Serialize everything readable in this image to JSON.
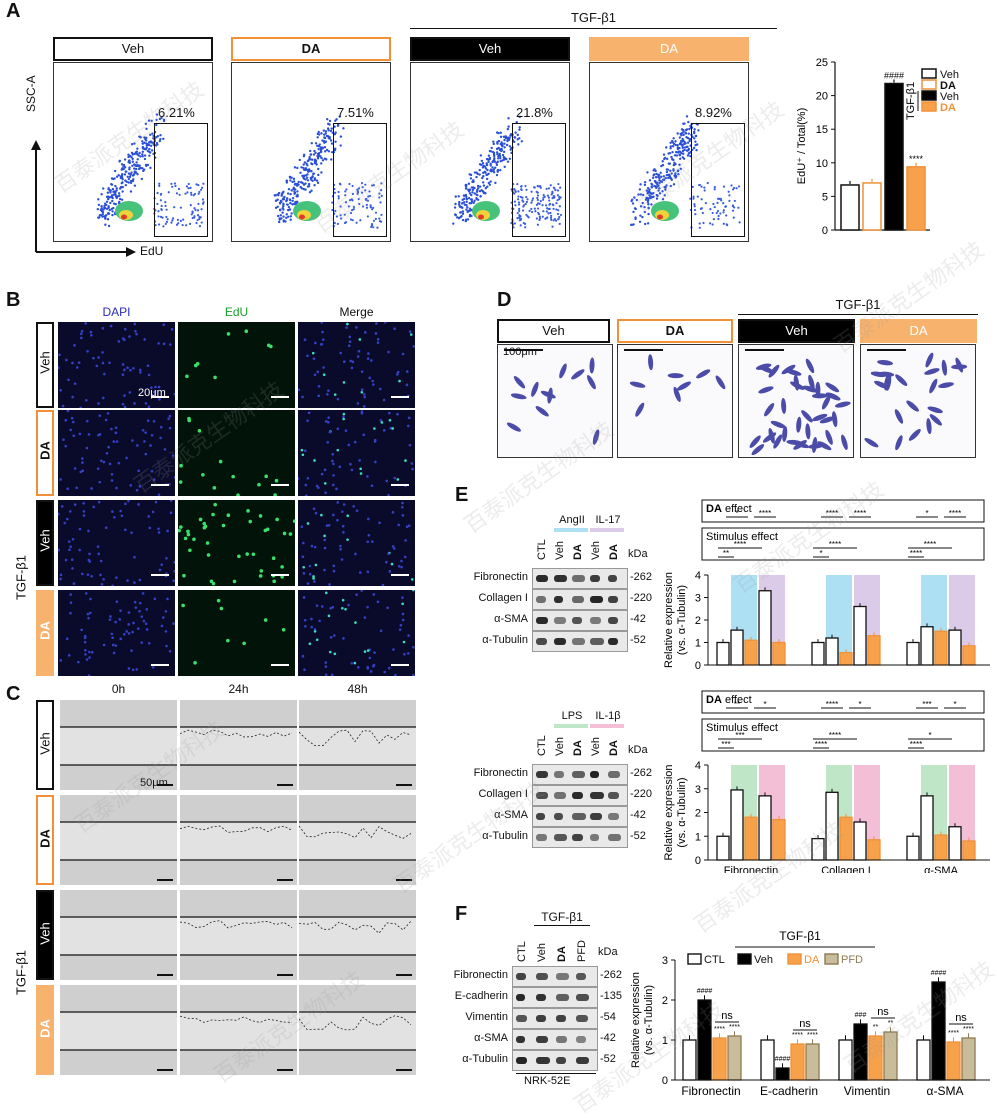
{
  "panelA": {
    "label": "A",
    "tgf_label": "TGF-β1",
    "groups": [
      "Veh",
      "DA",
      "Veh",
      "DA"
    ],
    "percentages": [
      "6.21%",
      "7.51%",
      "21.8%",
      "8.92%"
    ],
    "x_axis": "EdU",
    "y_axis": "SSC-A"
  },
  "chartA": {
    "type": "bar",
    "ylabel": "EdU⁺ / Total(%)",
    "ylim": [
      0,
      25
    ],
    "yticks": [
      "0",
      "5",
      "10",
      "15",
      "20",
      "25"
    ],
    "legend": [
      "Veh",
      "DA",
      "Veh",
      "DA"
    ],
    "legend_group": "TGF-β1",
    "values": [
      6.7,
      7.0,
      21.8,
      9.4
    ],
    "colors": [
      "#ffffff",
      "#ffffff",
      "#000000",
      "#f7a24b"
    ],
    "edges": [
      "#111111",
      "#f0913a",
      "#111111",
      "#f0913a"
    ],
    "annotations": [
      "",
      "",
      "####",
      "****"
    ]
  },
  "panelB": {
    "label": "B",
    "columns": [
      "DAPI",
      "EdU",
      "Merge"
    ],
    "rows": [
      "Veh",
      "DA",
      "Veh",
      "DA"
    ],
    "tgf_label": "TGF-β1",
    "scale": "20μm"
  },
  "panelC": {
    "label": "C",
    "columns": [
      "0h",
      "24h",
      "48h"
    ],
    "rows": [
      "Veh",
      "DA",
      "Veh",
      "DA"
    ],
    "tgf_label": "TGF-β1",
    "scale": "50μm"
  },
  "panelD": {
    "label": "D",
    "tgf_label": "TGF-β1",
    "groups": [
      "Veh",
      "DA",
      "Veh",
      "DA"
    ],
    "scale": "100μm"
  },
  "panelE": {
    "label": "E",
    "blot1": {
      "stimuli": [
        "AngII",
        "IL-17"
      ],
      "lanes": [
        "CTL",
        "Veh",
        "DA",
        "Veh",
        "DA"
      ],
      "kda": "kDa",
      "proteins": [
        "Fibronectin",
        "Collagen I",
        "α-SMA",
        "α-Tubulin"
      ],
      "sizes": [
        "262",
        "220",
        "42",
        "52"
      ]
    },
    "blot2": {
      "stimuli": [
        "LPS",
        "IL-1β"
      ],
      "lanes": [
        "CTL",
        "Veh",
        "DA",
        "Veh",
        "DA"
      ],
      "kda": "kDa",
      "proteins": [
        "Fibronectin",
        "Collagen I",
        "α-SMA",
        "α-Tubulin"
      ],
      "sizes": [
        "262",
        "220",
        "42",
        "52"
      ]
    },
    "da_effect": "DA effect",
    "stimulus_effect": "Stimulus effect",
    "da_effect_bold": "DA",
    "da_effect_rest": " effect"
  },
  "chartE1": {
    "type": "bar",
    "ylabel": "Relative expression",
    "ylabel2": "(vs. α-Tubulin)",
    "ylim": [
      0,
      4
    ],
    "yticks": [
      "0",
      "1",
      "2",
      "3",
      "4"
    ],
    "categories": [
      "Fibronectin",
      "Collagen I",
      "α-SMA"
    ],
    "values": [
      [
        1.0,
        1.55,
        1.1,
        3.3,
        1.0
      ],
      [
        1.0,
        1.2,
        0.55,
        2.6,
        1.3
      ],
      [
        1.0,
        1.7,
        1.5,
        1.55,
        0.85
      ]
    ],
    "da_sig": [
      [
        "*",
        "****"
      ],
      [
        "****",
        "****"
      ],
      [
        "*",
        "****"
      ]
    ],
    "stim_sig": [
      [
        "**",
        "****"
      ],
      [
        "*",
        "****"
      ],
      [
        "****",
        "****"
      ]
    ],
    "bg_colors": [
      "#aee0f4",
      "#dccbe8"
    ]
  },
  "chartE2": {
    "type": "bar",
    "ylabel": "Relative expression",
    "ylabel2": "(vs. α-Tubulin)",
    "ylim": [
      0,
      4
    ],
    "yticks": [
      "0",
      "1",
      "2",
      "3",
      "4"
    ],
    "categories": [
      "Fibronectin",
      "Collagen I",
      "α-SMA"
    ],
    "values": [
      [
        1.0,
        2.95,
        1.8,
        2.7,
        1.7
      ],
      [
        0.9,
        2.85,
        1.8,
        1.6,
        0.85
      ],
      [
        1.0,
        2.7,
        1.05,
        1.4,
        0.8
      ]
    ],
    "da_sig": [
      [
        "**",
        "*"
      ],
      [
        "****",
        "*"
      ],
      [
        "***",
        "*"
      ]
    ],
    "stim_sig": [
      [
        "***",
        "***"
      ],
      [
        "****",
        "****"
      ],
      [
        "****",
        "*"
      ]
    ],
    "bg_colors": [
      "#bfe6c6",
      "#f3bfd6"
    ]
  },
  "panelF": {
    "label": "F",
    "tgf_label": "TGF-β1",
    "lanes": [
      "CTL",
      "Veh",
      "DA",
      "PFD"
    ],
    "kda": "kDa",
    "proteins": [
      "Fibronectin",
      "E-cadherin",
      "Vimentin",
      "α-SMA",
      "α-Tubulin"
    ],
    "sizes": [
      "262",
      "135",
      "54",
      "42",
      "52"
    ],
    "cell_line": "NRK-52E"
  },
  "chartF": {
    "type": "bar",
    "ylabel": "Relative expression",
    "ylabel2": "(vs. α-Tubulin)",
    "ylim": [
      0,
      3
    ],
    "yticks": [
      "0",
      "1",
      "2",
      "3"
    ],
    "legend": [
      "CTL",
      "Veh",
      "DA",
      "PFD"
    ],
    "legend_group": "TGF-β1",
    "categories": [
      "Fibronectin",
      "E-cadherin",
      "Vimentin",
      "α-SMA"
    ],
    "values": [
      [
        1.0,
        2.0,
        1.05,
        1.1
      ],
      [
        1.0,
        0.3,
        0.9,
        0.9
      ],
      [
        1.0,
        1.4,
        1.1,
        1.2
      ],
      [
        1.0,
        2.45,
        0.95,
        1.05
      ]
    ],
    "top_sig": [
      [
        "####",
        "****",
        "****"
      ],
      [
        "####",
        "****",
        "****"
      ],
      [
        "###",
        "**",
        "**"
      ],
      [
        "####",
        "****",
        "****"
      ]
    ],
    "ns": "ns",
    "colors": [
      "#ffffff",
      "#000000",
      "#f7a24b",
      "#c9bc9a"
    ],
    "edges": [
      "#111111",
      "#111111",
      "#f0913a",
      "#8c7a52"
    ]
  },
  "watermark": "百泰派克生物科技"
}
